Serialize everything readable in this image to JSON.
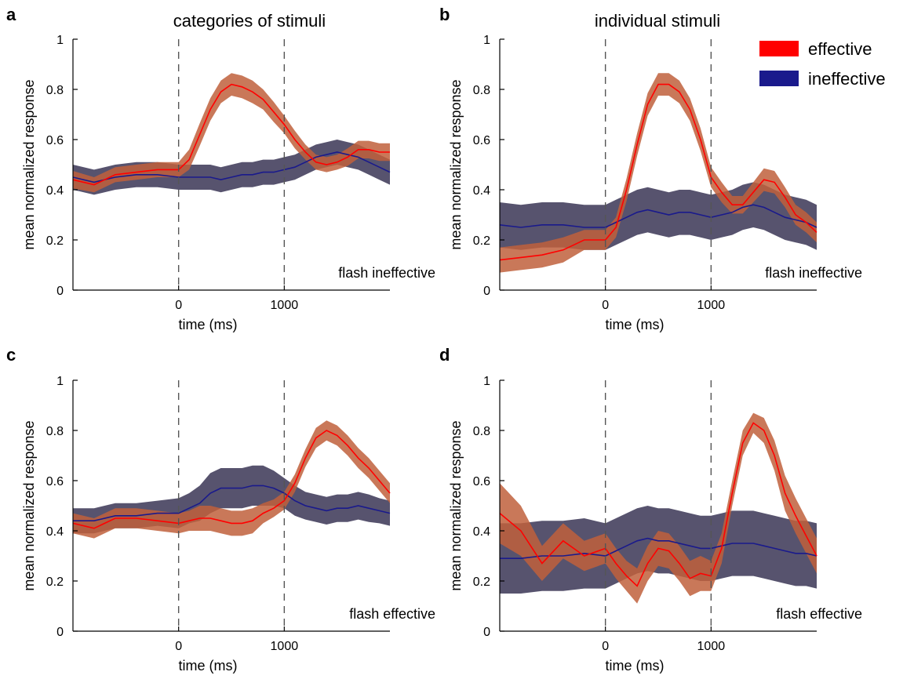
{
  "column_titles": [
    "categories of stimuli",
    "individual stimuli"
  ],
  "legend": {
    "placement": "top-right",
    "items": [
      {
        "label": "effective",
        "color": "#ff0000"
      },
      {
        "label": "ineffective",
        "color": "#1a1a8c"
      }
    ]
  },
  "colors": {
    "effective_line": "#ff0000",
    "effective_band": "#c0603c",
    "ineffective_line": "#1a1a8c",
    "ineffective_band": "#4e4a66",
    "stimulus_marker": "#555555"
  },
  "chart_data": [
    {
      "panel": "a",
      "type": "line",
      "annotation": "flash ineffective",
      "xlabel": "time (ms)",
      "ylabel": "mean normalized response",
      "xlim": [
        -1000,
        2000
      ],
      "ylim": [
        0,
        1
      ],
      "xticks": [
        0,
        1000
      ],
      "yticks": [
        0,
        0.2,
        0.4,
        0.6,
        0.8,
        1
      ],
      "stimulus_markers": [
        0,
        1000
      ],
      "x": [
        -1000,
        -800,
        -600,
        -400,
        -200,
        0,
        100,
        200,
        300,
        400,
        500,
        600,
        700,
        800,
        900,
        1000,
        1100,
        1200,
        1300,
        1400,
        1500,
        1600,
        1700,
        1800,
        1900,
        2000
      ],
      "series": [
        {
          "name": "effective",
          "values": [
            0.44,
            0.42,
            0.46,
            0.47,
            0.48,
            0.48,
            0.52,
            0.62,
            0.72,
            0.79,
            0.82,
            0.81,
            0.79,
            0.76,
            0.71,
            0.66,
            0.6,
            0.55,
            0.51,
            0.5,
            0.51,
            0.53,
            0.56,
            0.56,
            0.55,
            0.55
          ],
          "band": [
            0.035,
            0.03,
            0.03,
            0.03,
            0.03,
            0.03,
            0.04,
            0.045,
            0.045,
            0.045,
            0.045,
            0.045,
            0.045,
            0.04,
            0.04,
            0.035,
            0.035,
            0.03,
            0.03,
            0.03,
            0.03,
            0.035,
            0.035,
            0.035,
            0.035,
            0.035
          ]
        },
        {
          "name": "ineffective",
          "values": [
            0.45,
            0.43,
            0.45,
            0.46,
            0.46,
            0.45,
            0.45,
            0.45,
            0.45,
            0.44,
            0.45,
            0.46,
            0.46,
            0.47,
            0.47,
            0.48,
            0.49,
            0.51,
            0.53,
            0.54,
            0.55,
            0.54,
            0.53,
            0.51,
            0.49,
            0.47
          ],
          "band": [
            0.05,
            0.05,
            0.05,
            0.05,
            0.05,
            0.05,
            0.05,
            0.05,
            0.05,
            0.05,
            0.05,
            0.05,
            0.05,
            0.05,
            0.05,
            0.05,
            0.05,
            0.05,
            0.05,
            0.05,
            0.05,
            0.05,
            0.05,
            0.05,
            0.05,
            0.05
          ]
        }
      ]
    },
    {
      "panel": "b",
      "type": "line",
      "annotation": "flash ineffective",
      "xlabel": "time (ms)",
      "ylabel": "mean normalized response",
      "xlim": [
        -1000,
        2000
      ],
      "ylim": [
        0,
        1
      ],
      "xticks": [
        0,
        1000
      ],
      "yticks": [
        0,
        0.2,
        0.4,
        0.6,
        0.8,
        1
      ],
      "stimulus_markers": [
        0,
        1000
      ],
      "x": [
        -1000,
        -800,
        -600,
        -400,
        -200,
        0,
        100,
        200,
        300,
        400,
        500,
        600,
        700,
        800,
        900,
        1000,
        1100,
        1200,
        1300,
        1400,
        1500,
        1600,
        1700,
        1800,
        1900,
        2000
      ],
      "series": [
        {
          "name": "effective",
          "values": [
            0.12,
            0.13,
            0.14,
            0.16,
            0.2,
            0.2,
            0.25,
            0.4,
            0.58,
            0.74,
            0.82,
            0.82,
            0.79,
            0.72,
            0.6,
            0.45,
            0.39,
            0.34,
            0.34,
            0.39,
            0.44,
            0.43,
            0.37,
            0.3,
            0.27,
            0.23
          ],
          "band": [
            0.05,
            0.05,
            0.05,
            0.05,
            0.04,
            0.04,
            0.04,
            0.045,
            0.045,
            0.045,
            0.045,
            0.045,
            0.045,
            0.045,
            0.045,
            0.04,
            0.04,
            0.035,
            0.035,
            0.04,
            0.045,
            0.045,
            0.04,
            0.04,
            0.04,
            0.04
          ]
        },
        {
          "name": "ineffective",
          "values": [
            0.26,
            0.25,
            0.26,
            0.26,
            0.25,
            0.25,
            0.27,
            0.29,
            0.31,
            0.32,
            0.31,
            0.3,
            0.31,
            0.31,
            0.3,
            0.29,
            0.3,
            0.31,
            0.33,
            0.34,
            0.33,
            0.31,
            0.29,
            0.28,
            0.27,
            0.25
          ],
          "band": [
            0.09,
            0.09,
            0.09,
            0.09,
            0.09,
            0.09,
            0.09,
            0.09,
            0.09,
            0.09,
            0.09,
            0.09,
            0.09,
            0.09,
            0.09,
            0.09,
            0.09,
            0.09,
            0.09,
            0.09,
            0.09,
            0.09,
            0.09,
            0.09,
            0.09,
            0.09
          ]
        }
      ]
    },
    {
      "panel": "c",
      "type": "line",
      "annotation": "flash effective",
      "xlabel": "time (ms)",
      "ylabel": "mean normalized response",
      "xlim": [
        -1000,
        2000
      ],
      "ylim": [
        0,
        1
      ],
      "xticks": [
        0,
        1000
      ],
      "yticks": [
        0,
        0.2,
        0.4,
        0.6,
        0.8,
        1
      ],
      "stimulus_markers": [
        0,
        1000
      ],
      "x": [
        -1000,
        -800,
        -600,
        -400,
        -200,
        0,
        100,
        200,
        300,
        400,
        500,
        600,
        700,
        800,
        900,
        1000,
        1100,
        1200,
        1300,
        1400,
        1500,
        1600,
        1700,
        1800,
        1900,
        2000
      ],
      "series": [
        {
          "name": "effective",
          "values": [
            0.43,
            0.41,
            0.45,
            0.45,
            0.44,
            0.43,
            0.44,
            0.45,
            0.45,
            0.44,
            0.43,
            0.43,
            0.44,
            0.47,
            0.49,
            0.52,
            0.59,
            0.69,
            0.77,
            0.8,
            0.78,
            0.74,
            0.69,
            0.65,
            0.6,
            0.55
          ],
          "band": [
            0.04,
            0.04,
            0.04,
            0.04,
            0.04,
            0.04,
            0.04,
            0.05,
            0.05,
            0.05,
            0.05,
            0.05,
            0.05,
            0.04,
            0.035,
            0.035,
            0.035,
            0.035,
            0.04,
            0.04,
            0.04,
            0.04,
            0.04,
            0.04,
            0.04,
            0.04
          ]
        },
        {
          "name": "ineffective",
          "values": [
            0.44,
            0.44,
            0.46,
            0.46,
            0.47,
            0.47,
            0.49,
            0.51,
            0.55,
            0.57,
            0.57,
            0.57,
            0.58,
            0.58,
            0.57,
            0.55,
            0.52,
            0.5,
            0.49,
            0.48,
            0.49,
            0.49,
            0.5,
            0.49,
            0.48,
            0.47
          ],
          "band": [
            0.05,
            0.05,
            0.05,
            0.05,
            0.05,
            0.06,
            0.06,
            0.07,
            0.08,
            0.08,
            0.08,
            0.08,
            0.08,
            0.08,
            0.07,
            0.06,
            0.06,
            0.055,
            0.055,
            0.055,
            0.055,
            0.055,
            0.055,
            0.055,
            0.05,
            0.05
          ]
        }
      ]
    },
    {
      "panel": "d",
      "type": "line",
      "annotation": "flash effective",
      "xlabel": "time (ms)",
      "ylabel": "mean normalized response",
      "xlim": [
        -1000,
        2000
      ],
      "ylim": [
        0,
        1
      ],
      "xticks": [
        0,
        1000
      ],
      "yticks": [
        0,
        0.2,
        0.4,
        0.6,
        0.8,
        1
      ],
      "stimulus_markers": [
        0,
        1000
      ],
      "x": [
        -1000,
        -800,
        -600,
        -400,
        -200,
        0,
        100,
        200,
        300,
        400,
        500,
        600,
        700,
        800,
        900,
        1000,
        1100,
        1200,
        1300,
        1400,
        1500,
        1600,
        1700,
        1800,
        1900,
        2000
      ],
      "series": [
        {
          "name": "effective",
          "values": [
            0.47,
            0.4,
            0.27,
            0.36,
            0.3,
            0.33,
            0.27,
            0.22,
            0.18,
            0.27,
            0.33,
            0.32,
            0.27,
            0.21,
            0.23,
            0.22,
            0.33,
            0.55,
            0.75,
            0.83,
            0.8,
            0.7,
            0.55,
            0.46,
            0.38,
            0.3
          ],
          "band": [
            0.12,
            0.1,
            0.07,
            0.07,
            0.06,
            0.06,
            0.06,
            0.06,
            0.07,
            0.07,
            0.07,
            0.07,
            0.07,
            0.07,
            0.07,
            0.06,
            0.06,
            0.05,
            0.05,
            0.04,
            0.05,
            0.06,
            0.07,
            0.07,
            0.07,
            0.07
          ]
        },
        {
          "name": "ineffective",
          "values": [
            0.29,
            0.29,
            0.3,
            0.3,
            0.31,
            0.3,
            0.32,
            0.34,
            0.36,
            0.37,
            0.36,
            0.36,
            0.35,
            0.34,
            0.33,
            0.33,
            0.34,
            0.35,
            0.35,
            0.35,
            0.34,
            0.33,
            0.32,
            0.31,
            0.31,
            0.3
          ],
          "band": [
            0.14,
            0.14,
            0.14,
            0.14,
            0.14,
            0.13,
            0.13,
            0.13,
            0.13,
            0.13,
            0.13,
            0.13,
            0.13,
            0.13,
            0.13,
            0.13,
            0.13,
            0.13,
            0.13,
            0.13,
            0.13,
            0.13,
            0.13,
            0.13,
            0.13,
            0.13
          ]
        }
      ]
    }
  ]
}
